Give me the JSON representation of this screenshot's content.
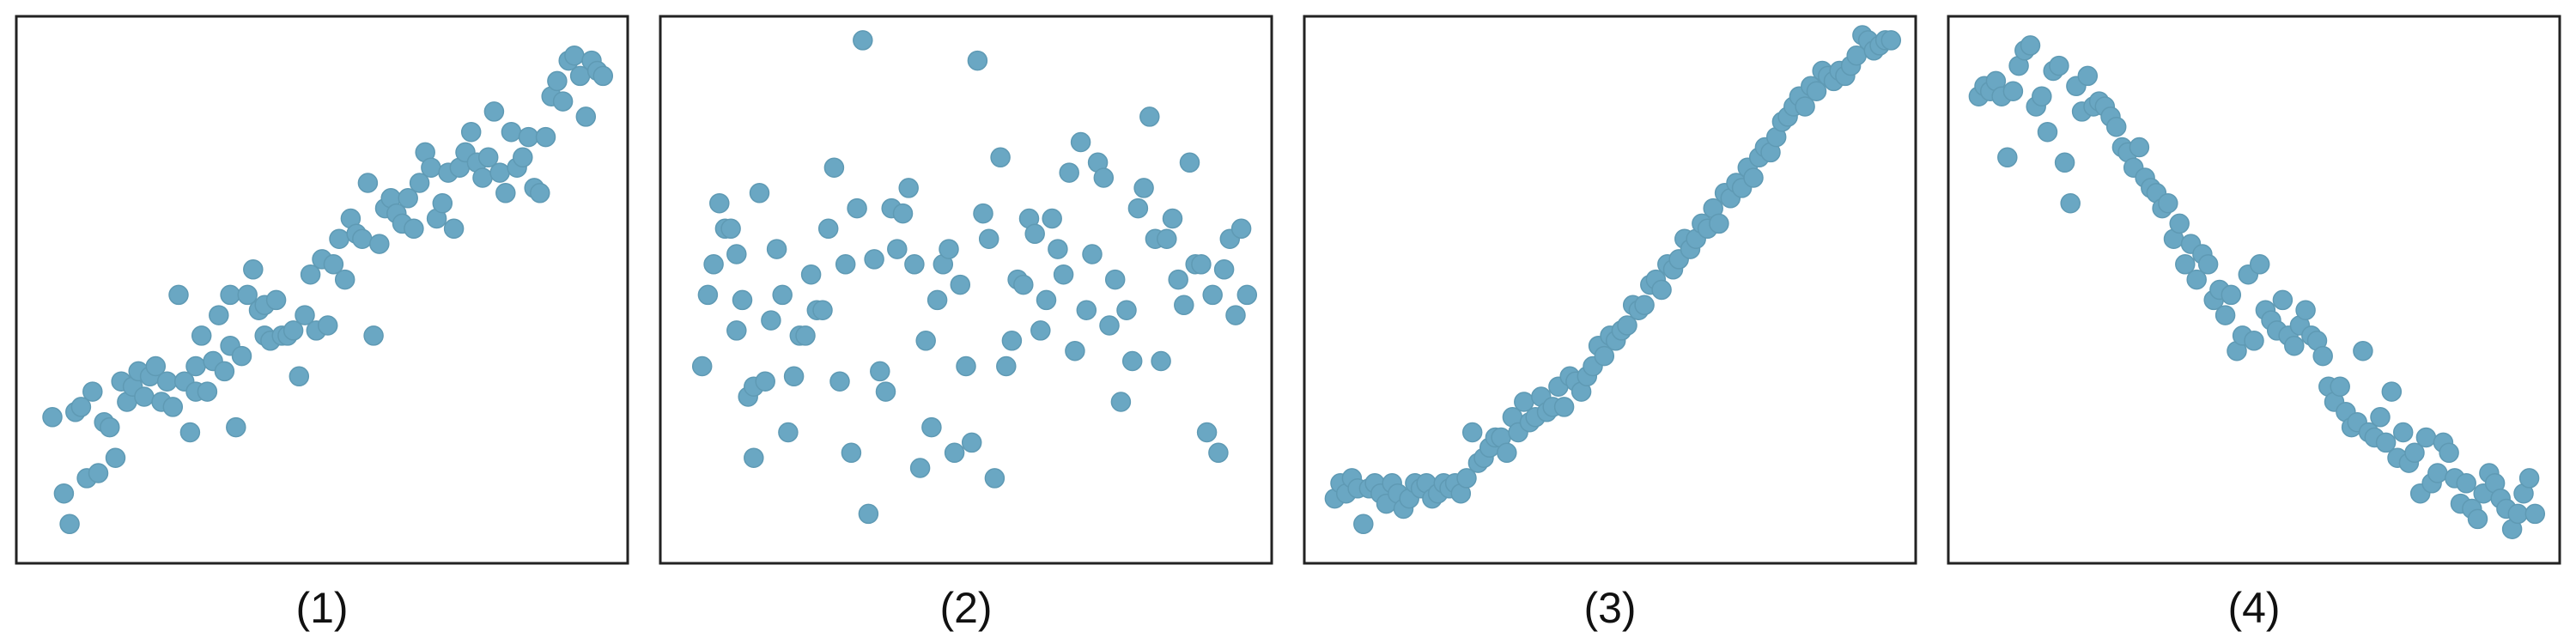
{
  "figure": {
    "point_color": "#6aa7c3",
    "point_edge_color": "#5f9ab4"
  },
  "chart_data": [
    {
      "type": "scatter",
      "label": "(1)",
      "xlim": [
        0,
        100
      ],
      "ylim": [
        0,
        100
      ],
      "grid": false,
      "points": [
        [
          3,
          25
        ],
        [
          5,
          10
        ],
        [
          6,
          4
        ],
        [
          7,
          26
        ],
        [
          8,
          27
        ],
        [
          9,
          13
        ],
        [
          10,
          30
        ],
        [
          11,
          14
        ],
        [
          12,
          24
        ],
        [
          13,
          23
        ],
        [
          14,
          17
        ],
        [
          15,
          32
        ],
        [
          16,
          28
        ],
        [
          17,
          31
        ],
        [
          18,
          34
        ],
        [
          19,
          29
        ],
        [
          20,
          33
        ],
        [
          21,
          35
        ],
        [
          22,
          28
        ],
        [
          23,
          32
        ],
        [
          24,
          27
        ],
        [
          25,
          49
        ],
        [
          26,
          32
        ],
        [
          27,
          22
        ],
        [
          28,
          35
        ],
        [
          28,
          30
        ],
        [
          29,
          41
        ],
        [
          30,
          30
        ],
        [
          31,
          36
        ],
        [
          32,
          45
        ],
        [
          33,
          34
        ],
        [
          34,
          39
        ],
        [
          34,
          49
        ],
        [
          35,
          23
        ],
        [
          36,
          37
        ],
        [
          37,
          49
        ],
        [
          38,
          54
        ],
        [
          39,
          46
        ],
        [
          40,
          47
        ],
        [
          40,
          41
        ],
        [
          41,
          40
        ],
        [
          42,
          48
        ],
        [
          43,
          41
        ],
        [
          44,
          41
        ],
        [
          45,
          42
        ],
        [
          46,
          33
        ],
        [
          47,
          45
        ],
        [
          48,
          53
        ],
        [
          49,
          42
        ],
        [
          50,
          56
        ],
        [
          51,
          43
        ],
        [
          52,
          55
        ],
        [
          53,
          60
        ],
        [
          54,
          52
        ],
        [
          55,
          64
        ],
        [
          56,
          61
        ],
        [
          57,
          60
        ],
        [
          58,
          71
        ],
        [
          59,
          41
        ],
        [
          60,
          59
        ],
        [
          61,
          66
        ],
        [
          62,
          68
        ],
        [
          63,
          65
        ],
        [
          64,
          63
        ],
        [
          65,
          68
        ],
        [
          66,
          62
        ],
        [
          67,
          71
        ],
        [
          68,
          77
        ],
        [
          69,
          74
        ],
        [
          70,
          64
        ],
        [
          71,
          67
        ],
        [
          72,
          73
        ],
        [
          73,
          62
        ],
        [
          74,
          74
        ],
        [
          75,
          77
        ],
        [
          76,
          81
        ],
        [
          77,
          75
        ],
        [
          78,
          72
        ],
        [
          79,
          76
        ],
        [
          80,
          85
        ],
        [
          81,
          73
        ],
        [
          82,
          69
        ],
        [
          83,
          81
        ],
        [
          84,
          74
        ],
        [
          85,
          76
        ],
        [
          86,
          80
        ],
        [
          87,
          70
        ],
        [
          88,
          69
        ],
        [
          89,
          80
        ],
        [
          90,
          88
        ],
        [
          91,
          91
        ],
        [
          92,
          87
        ],
        [
          93,
          95
        ],
        [
          94,
          96
        ],
        [
          95,
          92
        ],
        [
          96,
          84
        ],
        [
          97,
          95
        ],
        [
          98,
          93
        ],
        [
          99,
          92
        ]
      ]
    },
    {
      "type": "scatter",
      "label": "(2)",
      "xlim": [
        0,
        100
      ],
      "ylim": [
        0,
        100
      ],
      "grid": false,
      "points": [
        [
          4,
          35
        ],
        [
          5,
          49
        ],
        [
          6,
          55
        ],
        [
          7,
          67
        ],
        [
          8,
          62
        ],
        [
          9,
          62
        ],
        [
          10,
          42
        ],
        [
          10,
          57
        ],
        [
          11,
          48
        ],
        [
          12,
          29
        ],
        [
          13,
          17
        ],
        [
          13,
          31
        ],
        [
          14,
          69
        ],
        [
          15,
          32
        ],
        [
          16,
          44
        ],
        [
          17,
          58
        ],
        [
          18,
          49
        ],
        [
          19,
          22
        ],
        [
          20,
          33
        ],
        [
          21,
          41
        ],
        [
          22,
          41
        ],
        [
          23,
          53
        ],
        [
          24,
          46
        ],
        [
          25,
          46
        ],
        [
          26,
          62
        ],
        [
          27,
          74
        ],
        [
          28,
          32
        ],
        [
          29,
          55
        ],
        [
          30,
          18
        ],
        [
          31,
          66
        ],
        [
          32,
          99
        ],
        [
          33,
          6
        ],
        [
          34,
          56
        ],
        [
          35,
          34
        ],
        [
          36,
          30
        ],
        [
          37,
          66
        ],
        [
          38,
          58
        ],
        [
          39,
          65
        ],
        [
          40,
          70
        ],
        [
          41,
          55
        ],
        [
          42,
          15
        ],
        [
          43,
          40
        ],
        [
          44,
          23
        ],
        [
          45,
          48
        ],
        [
          46,
          55
        ],
        [
          47,
          58
        ],
        [
          48,
          18
        ],
        [
          49,
          51
        ],
        [
          50,
          35
        ],
        [
          51,
          20
        ],
        [
          52,
          95
        ],
        [
          53,
          65
        ],
        [
          54,
          60
        ],
        [
          55,
          13
        ],
        [
          56,
          76
        ],
        [
          57,
          35
        ],
        [
          58,
          40
        ],
        [
          59,
          52
        ],
        [
          60,
          51
        ],
        [
          61,
          64
        ],
        [
          62,
          61
        ],
        [
          63,
          42
        ],
        [
          64,
          48
        ],
        [
          65,
          64
        ],
        [
          66,
          58
        ],
        [
          67,
          53
        ],
        [
          68,
          73
        ],
        [
          69,
          38
        ],
        [
          70,
          79
        ],
        [
          71,
          46
        ],
        [
          72,
          57
        ],
        [
          73,
          75
        ],
        [
          74,
          72
        ],
        [
          75,
          43
        ],
        [
          76,
          52
        ],
        [
          77,
          28
        ],
        [
          78,
          46
        ],
        [
          79,
          36
        ],
        [
          80,
          66
        ],
        [
          81,
          70
        ],
        [
          82,
          84
        ],
        [
          83,
          60
        ],
        [
          84,
          36
        ],
        [
          85,
          60
        ],
        [
          86,
          64
        ],
        [
          87,
          52
        ],
        [
          88,
          47
        ],
        [
          89,
          75
        ],
        [
          90,
          55
        ],
        [
          91,
          55
        ],
        [
          92,
          22
        ],
        [
          93,
          49
        ],
        [
          94,
          18
        ],
        [
          95,
          54
        ],
        [
          96,
          60
        ],
        [
          97,
          45
        ],
        [
          98,
          62
        ],
        [
          99,
          49
        ]
      ]
    },
    {
      "type": "scatter",
      "label": "(3)",
      "xlim": [
        0,
        100
      ],
      "ylim": [
        0,
        100
      ],
      "grid": false,
      "points": [
        [
          2,
          9
        ],
        [
          3,
          12
        ],
        [
          4,
          10
        ],
        [
          5,
          13
        ],
        [
          6,
          11
        ],
        [
          7,
          4
        ],
        [
          8,
          11
        ],
        [
          9,
          12
        ],
        [
          10,
          10
        ],
        [
          11,
          8
        ],
        [
          12,
          12
        ],
        [
          13,
          10
        ],
        [
          14,
          7
        ],
        [
          15,
          9
        ],
        [
          16,
          12
        ],
        [
          17,
          11
        ],
        [
          18,
          12
        ],
        [
          19,
          9
        ],
        [
          20,
          10
        ],
        [
          21,
          12
        ],
        [
          22,
          11
        ],
        [
          23,
          12
        ],
        [
          24,
          10
        ],
        [
          25,
          13
        ],
        [
          26,
          22
        ],
        [
          27,
          16
        ],
        [
          28,
          17
        ],
        [
          29,
          19
        ],
        [
          30,
          21
        ],
        [
          31,
          21
        ],
        [
          32,
          18
        ],
        [
          33,
          25
        ],
        [
          34,
          22
        ],
        [
          35,
          28
        ],
        [
          36,
          24
        ],
        [
          37,
          25
        ],
        [
          38,
          29
        ],
        [
          39,
          26
        ],
        [
          40,
          27
        ],
        [
          41,
          31
        ],
        [
          42,
          27
        ],
        [
          43,
          33
        ],
        [
          44,
          32
        ],
        [
          45,
          30
        ],
        [
          46,
          33
        ],
        [
          47,
          35
        ],
        [
          48,
          39
        ],
        [
          49,
          37
        ],
        [
          50,
          41
        ],
        [
          51,
          40
        ],
        [
          52,
          42
        ],
        [
          53,
          43
        ],
        [
          54,
          47
        ],
        [
          55,
          46
        ],
        [
          56,
          47
        ],
        [
          57,
          51
        ],
        [
          58,
          52
        ],
        [
          59,
          50
        ],
        [
          60,
          55
        ],
        [
          61,
          54
        ],
        [
          62,
          56
        ],
        [
          63,
          60
        ],
        [
          64,
          58
        ],
        [
          65,
          60
        ],
        [
          66,
          63
        ],
        [
          67,
          62
        ],
        [
          68,
          66
        ],
        [
          69,
          63
        ],
        [
          70,
          69
        ],
        [
          71,
          68
        ],
        [
          72,
          71
        ],
        [
          73,
          70
        ],
        [
          74,
          74
        ],
        [
          75,
          72
        ],
        [
          76,
          76
        ],
        [
          77,
          78
        ],
        [
          78,
          77
        ],
        [
          79,
          80
        ],
        [
          80,
          83
        ],
        [
          81,
          84
        ],
        [
          82,
          86
        ],
        [
          83,
          88
        ],
        [
          84,
          86
        ],
        [
          85,
          90
        ],
        [
          86,
          89
        ],
        [
          87,
          93
        ],
        [
          88,
          92
        ],
        [
          89,
          91
        ],
        [
          90,
          93
        ],
        [
          91,
          92
        ],
        [
          92,
          94
        ],
        [
          93,
          96
        ],
        [
          94,
          100
        ],
        [
          95,
          99
        ],
        [
          96,
          97
        ],
        [
          97,
          98
        ],
        [
          98,
          99
        ],
        [
          99,
          99
        ]
      ]
    },
    {
      "type": "scatter",
      "label": "(4)",
      "xlim": [
        0,
        100
      ],
      "ylim": [
        0,
        100
      ],
      "grid": false,
      "points": [
        [
          2,
          88
        ],
        [
          3,
          90
        ],
        [
          4,
          89
        ],
        [
          5,
          91
        ],
        [
          6,
          88
        ],
        [
          7,
          76
        ],
        [
          8,
          89
        ],
        [
          9,
          94
        ],
        [
          10,
          97
        ],
        [
          11,
          98
        ],
        [
          12,
          86
        ],
        [
          13,
          88
        ],
        [
          14,
          81
        ],
        [
          15,
          93
        ],
        [
          16,
          94
        ],
        [
          17,
          75
        ],
        [
          18,
          67
        ],
        [
          19,
          90
        ],
        [
          20,
          85
        ],
        [
          21,
          92
        ],
        [
          22,
          86
        ],
        [
          23,
          87
        ],
        [
          24,
          86
        ],
        [
          25,
          84
        ],
        [
          26,
          82
        ],
        [
          27,
          78
        ],
        [
          28,
          77
        ],
        [
          29,
          74
        ],
        [
          30,
          78
        ],
        [
          31,
          72
        ],
        [
          32,
          70
        ],
        [
          33,
          69
        ],
        [
          34,
          66
        ],
        [
          35,
          67
        ],
        [
          36,
          60
        ],
        [
          37,
          63
        ],
        [
          38,
          55
        ],
        [
          39,
          59
        ],
        [
          40,
          52
        ],
        [
          41,
          57
        ],
        [
          42,
          55
        ],
        [
          43,
          48
        ],
        [
          44,
          50
        ],
        [
          45,
          45
        ],
        [
          46,
          49
        ],
        [
          47,
          38
        ],
        [
          48,
          41
        ],
        [
          49,
          53
        ],
        [
          50,
          40
        ],
        [
          51,
          55
        ],
        [
          52,
          46
        ],
        [
          53,
          44
        ],
        [
          54,
          42
        ],
        [
          55,
          48
        ],
        [
          56,
          41
        ],
        [
          57,
          39
        ],
        [
          58,
          43
        ],
        [
          59,
          46
        ],
        [
          60,
          41
        ],
        [
          61,
          40
        ],
        [
          62,
          37
        ],
        [
          63,
          31
        ],
        [
          64,
          28
        ],
        [
          65,
          31
        ],
        [
          66,
          26
        ],
        [
          67,
          23
        ],
        [
          68,
          24
        ],
        [
          69,
          38
        ],
        [
          70,
          22
        ],
        [
          71,
          21
        ],
        [
          72,
          25
        ],
        [
          73,
          20
        ],
        [
          74,
          30
        ],
        [
          75,
          17
        ],
        [
          76,
          22
        ],
        [
          77,
          16
        ],
        [
          78,
          18
        ],
        [
          79,
          10
        ],
        [
          80,
          21
        ],
        [
          81,
          12
        ],
        [
          82,
          14
        ],
        [
          83,
          20
        ],
        [
          84,
          18
        ],
        [
          85,
          13
        ],
        [
          86,
          8
        ],
        [
          87,
          12
        ],
        [
          88,
          7
        ],
        [
          89,
          5
        ],
        [
          90,
          10
        ],
        [
          91,
          14
        ],
        [
          92,
          12
        ],
        [
          93,
          9
        ],
        [
          94,
          7
        ],
        [
          95,
          3
        ],
        [
          96,
          6
        ],
        [
          97,
          10
        ],
        [
          98,
          13
        ],
        [
          99,
          6
        ]
      ]
    }
  ]
}
